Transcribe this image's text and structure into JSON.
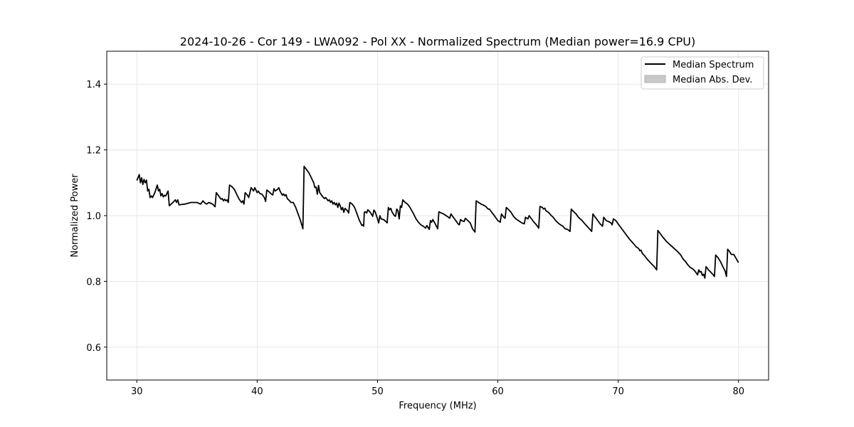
{
  "chart_data": {
    "type": "line",
    "title": "2024-10-26 - Cor 149 - LWA092 - Pol XX - Normalized Spectrum (Median power=16.9 CPU)",
    "xlabel": "Frequency (MHz)",
    "ylabel": "Normalized Power",
    "xlim": [
      27.5,
      82.5
    ],
    "ylim": [
      0.5,
      1.5
    ],
    "xticks": [
      30,
      40,
      50,
      60,
      70,
      80
    ],
    "yticks": [
      0.6,
      0.8,
      1.0,
      1.2,
      1.4
    ],
    "xtick_labels": [
      "30",
      "40",
      "50",
      "60",
      "70",
      "80"
    ],
    "ytick_labels": [
      "0.6",
      "0.8",
      "1.0",
      "1.2",
      "1.4"
    ],
    "grid": true,
    "legend_position": "top-right",
    "legend": [
      {
        "label": "Median Spectrum",
        "kind": "line",
        "color": "#000000"
      },
      {
        "label": "Median Abs. Dev.",
        "kind": "patch",
        "color": "#c8c8c8"
      }
    ],
    "series": [
      {
        "name": "Median Spectrum",
        "color": "#000000",
        "points": [
          [
            30.0,
            1.107
          ],
          [
            30.2,
            1.125
          ],
          [
            30.3,
            1.1
          ],
          [
            30.4,
            1.115
          ],
          [
            30.5,
            1.095
          ],
          [
            30.6,
            1.11
          ],
          [
            30.7,
            1.1
          ],
          [
            30.8,
            1.108
          ],
          [
            30.9,
            1.075
          ],
          [
            31.0,
            1.08
          ],
          [
            31.1,
            1.055
          ],
          [
            31.2,
            1.06
          ],
          [
            31.3,
            1.055
          ],
          [
            31.5,
            1.07
          ],
          [
            31.7,
            1.093
          ],
          [
            31.8,
            1.075
          ],
          [
            31.9,
            1.08
          ],
          [
            32.0,
            1.06
          ],
          [
            32.1,
            1.067
          ],
          [
            32.2,
            1.057
          ],
          [
            32.3,
            1.062
          ],
          [
            32.4,
            1.06
          ],
          [
            32.6,
            1.075
          ],
          [
            32.7,
            1.03
          ],
          [
            33.0,
            1.04
          ],
          [
            33.2,
            1.048
          ],
          [
            33.3,
            1.04
          ],
          [
            33.4,
            1.048
          ],
          [
            33.5,
            1.033
          ],
          [
            34.0,
            1.035
          ],
          [
            34.5,
            1.04
          ],
          [
            35.0,
            1.04
          ],
          [
            35.3,
            1.035
          ],
          [
            35.5,
            1.045
          ],
          [
            35.6,
            1.04
          ],
          [
            35.8,
            1.035
          ],
          [
            36.0,
            1.04
          ],
          [
            36.3,
            1.035
          ],
          [
            36.5,
            1.027
          ],
          [
            36.6,
            1.07
          ],
          [
            36.8,
            1.06
          ],
          [
            37.0,
            1.05
          ],
          [
            37.1,
            1.052
          ],
          [
            37.2,
            1.045
          ],
          [
            37.3,
            1.05
          ],
          [
            37.4,
            1.045
          ],
          [
            37.5,
            1.048
          ],
          [
            37.6,
            1.04
          ],
          [
            37.7,
            1.093
          ],
          [
            37.9,
            1.088
          ],
          [
            38.1,
            1.08
          ],
          [
            38.3,
            1.065
          ],
          [
            38.5,
            1.05
          ],
          [
            38.7,
            1.04
          ],
          [
            38.8,
            1.045
          ],
          [
            38.9,
            1.035
          ],
          [
            39.0,
            1.07
          ],
          [
            39.2,
            1.062
          ],
          [
            39.3,
            1.055
          ],
          [
            39.5,
            1.085
          ],
          [
            39.7,
            1.075
          ],
          [
            39.8,
            1.085
          ],
          [
            40.0,
            1.07
          ],
          [
            40.1,
            1.075
          ],
          [
            40.2,
            1.068
          ],
          [
            40.4,
            1.065
          ],
          [
            40.6,
            1.055
          ],
          [
            40.7,
            1.043
          ],
          [
            40.8,
            1.078
          ],
          [
            41.0,
            1.072
          ],
          [
            41.2,
            1.065
          ],
          [
            41.3,
            1.063
          ],
          [
            41.4,
            1.082
          ],
          [
            41.5,
            1.075
          ],
          [
            41.7,
            1.08
          ],
          [
            41.8,
            1.085
          ],
          [
            41.9,
            1.075
          ],
          [
            42.0,
            1.068
          ],
          [
            42.1,
            1.062
          ],
          [
            42.2,
            1.066
          ],
          [
            42.3,
            1.06
          ],
          [
            42.4,
            1.064
          ],
          [
            42.5,
            1.052
          ],
          [
            42.7,
            1.045
          ],
          [
            42.8,
            1.04
          ],
          [
            43.0,
            1.04
          ],
          [
            43.2,
            1.025
          ],
          [
            43.4,
            1.005
          ],
          [
            43.6,
            0.985
          ],
          [
            43.8,
            0.96
          ],
          [
            43.9,
            1.15
          ],
          [
            44.1,
            1.14
          ],
          [
            44.3,
            1.13
          ],
          [
            44.5,
            1.115
          ],
          [
            44.7,
            1.1
          ],
          [
            44.8,
            1.085
          ],
          [
            44.9,
            1.087
          ],
          [
            45.0,
            1.065
          ],
          [
            45.1,
            1.092
          ],
          [
            45.2,
            1.07
          ],
          [
            45.4,
            1.06
          ],
          [
            45.5,
            1.055
          ],
          [
            45.6,
            1.052
          ],
          [
            45.7,
            1.055
          ],
          [
            45.9,
            1.045
          ],
          [
            46.0,
            1.048
          ],
          [
            46.1,
            1.04
          ],
          [
            46.2,
            1.045
          ],
          [
            46.3,
            1.035
          ],
          [
            46.4,
            1.04
          ],
          [
            46.5,
            1.033
          ],
          [
            46.6,
            1.038
          ],
          [
            46.7,
            1.025
          ],
          [
            46.8,
            1.038
          ],
          [
            46.9,
            1.03
          ],
          [
            47.0,
            1.018
          ],
          [
            47.1,
            1.025
          ],
          [
            47.2,
            1.01
          ],
          [
            47.3,
            1.022
          ],
          [
            47.5,
            1.015
          ],
          [
            47.6,
            1.008
          ],
          [
            47.7,
            1.04
          ],
          [
            47.9,
            1.035
          ],
          [
            48.1,
            1.025
          ],
          [
            48.3,
            1.005
          ],
          [
            48.5,
            0.985
          ],
          [
            48.7,
            0.97
          ],
          [
            48.8,
            0.972
          ],
          [
            48.85,
            0.968
          ],
          [
            48.9,
            1.01
          ],
          [
            49.0,
            1.012
          ],
          [
            49.1,
            1.008
          ],
          [
            49.2,
            1.018
          ],
          [
            49.4,
            1.01
          ],
          [
            49.6,
            0.998
          ],
          [
            49.7,
            1.017
          ],
          [
            49.8,
            1.012
          ],
          [
            50.0,
            0.99
          ],
          [
            50.1,
            0.978
          ],
          [
            50.2,
            1.0
          ],
          [
            50.3,
            0.99
          ],
          [
            50.5,
            0.988
          ],
          [
            50.7,
            0.982
          ],
          [
            50.8,
            0.978
          ],
          [
            50.9,
            1.025
          ],
          [
            51.0,
            1.018
          ],
          [
            51.1,
            1.022
          ],
          [
            51.2,
            1.012
          ],
          [
            51.4,
            1.0
          ],
          [
            51.5,
            0.998
          ],
          [
            51.6,
            1.02
          ],
          [
            51.7,
            1.015
          ],
          [
            51.8,
            0.99
          ],
          [
            51.9,
            1.03
          ],
          [
            52.0,
            1.025
          ],
          [
            52.1,
            1.048
          ],
          [
            52.3,
            1.04
          ],
          [
            52.5,
            1.035
          ],
          [
            52.7,
            1.025
          ],
          [
            53.0,
            1.005
          ],
          [
            53.2,
            0.99
          ],
          [
            53.4,
            0.98
          ],
          [
            53.6,
            0.972
          ],
          [
            53.8,
            0.968
          ],
          [
            54.0,
            0.962
          ],
          [
            54.1,
            0.97
          ],
          [
            54.3,
            0.958
          ],
          [
            54.4,
            0.985
          ],
          [
            54.5,
            0.98
          ],
          [
            54.6,
            0.988
          ],
          [
            54.8,
            0.975
          ],
          [
            55.0,
            0.96
          ],
          [
            55.1,
            1.012
          ],
          [
            55.3,
            1.008
          ],
          [
            55.5,
            1.005
          ],
          [
            55.7,
            1.0
          ],
          [
            55.9,
            0.995
          ],
          [
            56.0,
            0.992
          ],
          [
            56.1,
            1.005
          ],
          [
            56.3,
            0.995
          ],
          [
            56.5,
            0.985
          ],
          [
            56.7,
            0.975
          ],
          [
            56.8,
            0.972
          ],
          [
            56.9,
            0.988
          ],
          [
            57.0,
            0.985
          ],
          [
            57.2,
            0.982
          ],
          [
            57.3,
            0.992
          ],
          [
            57.5,
            0.985
          ],
          [
            57.7,
            0.978
          ],
          [
            57.9,
            0.96
          ],
          [
            58.1,
            0.95
          ],
          [
            58.2,
            1.045
          ],
          [
            58.4,
            1.04
          ],
          [
            58.6,
            1.035
          ],
          [
            58.8,
            1.032
          ],
          [
            59.0,
            1.028
          ],
          [
            59.2,
            1.02
          ],
          [
            59.3,
            1.02
          ],
          [
            59.4,
            1.015
          ],
          [
            59.6,
            1.005
          ],
          [
            59.8,
            0.995
          ],
          [
            60.0,
            0.985
          ],
          [
            60.2,
            0.98
          ],
          [
            60.3,
            1.005
          ],
          [
            60.5,
            0.995
          ],
          [
            60.6,
            0.992
          ],
          [
            60.7,
            1.025
          ],
          [
            60.9,
            1.018
          ],
          [
            61.1,
            1.01
          ],
          [
            61.3,
            0.998
          ],
          [
            61.5,
            0.99
          ],
          [
            61.7,
            0.985
          ],
          [
            62.0,
            0.978
          ],
          [
            62.2,
            0.975
          ],
          [
            62.3,
            0.995
          ],
          [
            62.5,
            0.99
          ],
          [
            62.6,
            1.0
          ],
          [
            62.8,
            0.99
          ],
          [
            63.0,
            0.98
          ],
          [
            63.2,
            0.972
          ],
          [
            63.4,
            0.962
          ],
          [
            63.5,
            1.028
          ],
          [
            63.7,
            1.025
          ],
          [
            63.8,
            1.02
          ],
          [
            63.9,
            1.023
          ],
          [
            64.0,
            1.015
          ],
          [
            64.2,
            1.01
          ],
          [
            64.4,
            1.002
          ],
          [
            64.6,
            0.995
          ],
          [
            64.8,
            0.985
          ],
          [
            65.0,
            0.978
          ],
          [
            65.2,
            0.972
          ],
          [
            65.4,
            0.968
          ],
          [
            65.6,
            0.96
          ],
          [
            65.8,
            0.958
          ],
          [
            65.9,
            0.955
          ],
          [
            66.0,
            0.952
          ],
          [
            66.1,
            1.02
          ],
          [
            66.3,
            1.012
          ],
          [
            66.5,
            1.005
          ],
          [
            66.7,
            0.995
          ],
          [
            67.0,
            0.985
          ],
          [
            67.3,
            0.972
          ],
          [
            67.6,
            0.96
          ],
          [
            67.8,
            0.952
          ],
          [
            67.9,
            1.005
          ],
          [
            68.1,
            0.995
          ],
          [
            68.3,
            0.985
          ],
          [
            68.5,
            0.975
          ],
          [
            68.7,
            0.968
          ],
          [
            68.8,
            0.995
          ],
          [
            69.0,
            0.985
          ],
          [
            69.2,
            0.982
          ],
          [
            69.4,
            0.978
          ],
          [
            69.5,
            0.972
          ],
          [
            69.6,
            0.99
          ],
          [
            69.8,
            0.985
          ],
          [
            70.0,
            0.975
          ],
          [
            70.3,
            0.96
          ],
          [
            70.6,
            0.945
          ],
          [
            70.9,
            0.93
          ],
          [
            71.2,
            0.918
          ],
          [
            71.5,
            0.905
          ],
          [
            71.7,
            0.9
          ],
          [
            71.8,
            0.893
          ],
          [
            71.9,
            0.895
          ],
          [
            72.0,
            0.885
          ],
          [
            72.2,
            0.878
          ],
          [
            72.4,
            0.868
          ],
          [
            72.6,
            0.86
          ],
          [
            72.8,
            0.852
          ],
          [
            73.0,
            0.845
          ],
          [
            73.2,
            0.835
          ],
          [
            73.3,
            0.955
          ],
          [
            73.5,
            0.945
          ],
          [
            73.7,
            0.935
          ],
          [
            74.0,
            0.922
          ],
          [
            74.3,
            0.912
          ],
          [
            74.6,
            0.902
          ],
          [
            74.9,
            0.892
          ],
          [
            75.2,
            0.88
          ],
          [
            75.4,
            0.868
          ],
          [
            75.6,
            0.86
          ],
          [
            75.8,
            0.85
          ],
          [
            76.0,
            0.842
          ],
          [
            76.2,
            0.838
          ],
          [
            76.4,
            0.83
          ],
          [
            76.6,
            0.82
          ],
          [
            76.7,
            0.835
          ],
          [
            76.8,
            0.828
          ],
          [
            76.9,
            0.83
          ],
          [
            77.0,
            0.818
          ],
          [
            77.1,
            0.822
          ],
          [
            77.2,
            0.81
          ],
          [
            77.3,
            0.845
          ],
          [
            77.5,
            0.835
          ],
          [
            77.7,
            0.828
          ],
          [
            77.9,
            0.82
          ],
          [
            78.0,
            0.815
          ],
          [
            78.1,
            0.88
          ],
          [
            78.3,
            0.872
          ],
          [
            78.5,
            0.86
          ],
          [
            78.7,
            0.845
          ],
          [
            78.9,
            0.83
          ],
          [
            79.0,
            0.815
          ],
          [
            79.1,
            0.898
          ],
          [
            79.3,
            0.888
          ],
          [
            79.4,
            0.882
          ],
          [
            79.6,
            0.882
          ],
          [
            79.8,
            0.87
          ],
          [
            80.0,
            0.857
          ]
        ]
      }
    ]
  }
}
